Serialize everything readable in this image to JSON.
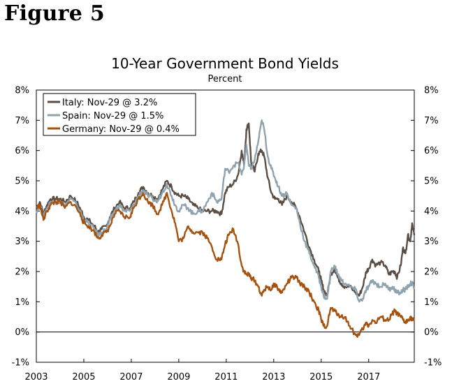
{
  "figure_label": "Figure 5",
  "chart_data": {
    "type": "line",
    "title": "10-Year Government Bond Yields",
    "subtitle": "Percent",
    "xlabel": "",
    "ylabel": "",
    "x_range": [
      2003.0,
      2018.92
    ],
    "ylim": [
      -1,
      8
    ],
    "y_ticks": [
      -1,
      0,
      1,
      2,
      3,
      4,
      5,
      6,
      7,
      8
    ],
    "y_tick_labels": [
      "-1%",
      "0%",
      "1%",
      "2%",
      "3%",
      "4%",
      "5%",
      "6%",
      "7%",
      "8%"
    ],
    "x_ticks": [
      2003,
      2005,
      2007,
      2009,
      2011,
      2013,
      2015,
      2017
    ],
    "x_tick_labels": [
      "2003",
      "2005",
      "2007",
      "2009",
      "2011",
      "2013",
      "2015",
      "2017"
    ],
    "legend_position": "top-left",
    "series": [
      {
        "name": "Italy: Nov-29 @ 3.2%",
        "color": "#5a4e44",
        "points": [
          [
            2003.0,
            4.1
          ],
          [
            2003.15,
            4.3
          ],
          [
            2003.3,
            3.9
          ],
          [
            2003.45,
            4.2
          ],
          [
            2003.6,
            4.4
          ],
          [
            2003.8,
            4.4
          ],
          [
            2004.0,
            4.4
          ],
          [
            2004.2,
            4.3
          ],
          [
            2004.45,
            4.5
          ],
          [
            2004.7,
            4.3
          ],
          [
            2004.9,
            4.0
          ],
          [
            2005.0,
            3.8
          ],
          [
            2005.2,
            3.7
          ],
          [
            2005.45,
            3.5
          ],
          [
            2005.6,
            3.3
          ],
          [
            2005.75,
            3.4
          ],
          [
            2005.95,
            3.5
          ],
          [
            2006.1,
            3.8
          ],
          [
            2006.3,
            4.1
          ],
          [
            2006.5,
            4.3
          ],
          [
            2006.7,
            4.1
          ],
          [
            2006.95,
            4.1
          ],
          [
            2007.1,
            4.3
          ],
          [
            2007.3,
            4.6
          ],
          [
            2007.5,
            4.8
          ],
          [
            2007.7,
            4.6
          ],
          [
            2007.9,
            4.5
          ],
          [
            2008.1,
            4.4
          ],
          [
            2008.3,
            4.7
          ],
          [
            2008.5,
            5.0
          ],
          [
            2008.7,
            4.8
          ],
          [
            2008.85,
            4.6
          ],
          [
            2009.0,
            4.5
          ],
          [
            2009.2,
            4.5
          ],
          [
            2009.4,
            4.4
          ],
          [
            2009.6,
            4.2
          ],
          [
            2009.8,
            4.1
          ],
          [
            2010.0,
            4.0
          ],
          [
            2010.2,
            4.0
          ],
          [
            2010.4,
            4.0
          ],
          [
            2010.6,
            4.0
          ],
          [
            2010.8,
            3.9
          ],
          [
            2010.95,
            4.6
          ],
          [
            2011.1,
            4.8
          ],
          [
            2011.3,
            4.9
          ],
          [
            2011.5,
            5.2
          ],
          [
            2011.65,
            6.0
          ],
          [
            2011.75,
            5.5
          ],
          [
            2011.85,
            6.7
          ],
          [
            2011.95,
            6.9
          ],
          [
            2012.05,
            5.6
          ],
          [
            2012.2,
            5.3
          ],
          [
            2012.35,
            5.9
          ],
          [
            2012.5,
            6.0
          ],
          [
            2012.6,
            5.8
          ],
          [
            2012.75,
            5.1
          ],
          [
            2012.9,
            4.6
          ],
          [
            2013.05,
            4.4
          ],
          [
            2013.2,
            4.4
          ],
          [
            2013.35,
            4.2
          ],
          [
            2013.55,
            4.5
          ],
          [
            2013.75,
            4.3
          ],
          [
            2013.95,
            4.1
          ],
          [
            2014.1,
            3.8
          ],
          [
            2014.3,
            3.3
          ],
          [
            2014.5,
            2.8
          ],
          [
            2014.7,
            2.4
          ],
          [
            2014.9,
            2.0
          ],
          [
            2015.0,
            1.7
          ],
          [
            2015.1,
            1.4
          ],
          [
            2015.25,
            1.2
          ],
          [
            2015.4,
            1.9
          ],
          [
            2015.55,
            2.1
          ],
          [
            2015.7,
            1.8
          ],
          [
            2015.85,
            1.6
          ],
          [
            2016.0,
            1.5
          ],
          [
            2016.2,
            1.5
          ],
          [
            2016.45,
            1.3
          ],
          [
            2016.6,
            1.2
          ],
          [
            2016.75,
            1.5
          ],
          [
            2016.9,
            2.0
          ],
          [
            2017.0,
            2.1
          ],
          [
            2017.15,
            2.4
          ],
          [
            2017.3,
            2.2
          ],
          [
            2017.5,
            2.3
          ],
          [
            2017.7,
            2.2
          ],
          [
            2017.85,
            1.9
          ],
          [
            2018.0,
            2.0
          ],
          [
            2018.1,
            2.0
          ],
          [
            2018.2,
            1.8
          ],
          [
            2018.35,
            2.2
          ],
          [
            2018.45,
            2.8
          ],
          [
            2018.55,
            2.6
          ],
          [
            2018.65,
            3.2
          ],
          [
            2018.75,
            3.0
          ],
          [
            2018.83,
            3.6
          ],
          [
            2018.92,
            3.2
          ]
        ]
      },
      {
        "name": "Spain: Nov-29 @ 1.5%",
        "color": "#8fa3af",
        "points": [
          [
            2003.0,
            4.0
          ],
          [
            2003.15,
            4.2
          ],
          [
            2003.3,
            3.8
          ],
          [
            2003.45,
            4.1
          ],
          [
            2003.6,
            4.3
          ],
          [
            2003.8,
            4.3
          ],
          [
            2004.0,
            4.3
          ],
          [
            2004.2,
            4.2
          ],
          [
            2004.45,
            4.4
          ],
          [
            2004.7,
            4.2
          ],
          [
            2004.9,
            3.9
          ],
          [
            2005.0,
            3.7
          ],
          [
            2005.2,
            3.6
          ],
          [
            2005.45,
            3.4
          ],
          [
            2005.6,
            3.2
          ],
          [
            2005.75,
            3.3
          ],
          [
            2005.95,
            3.4
          ],
          [
            2006.1,
            3.7
          ],
          [
            2006.3,
            4.0
          ],
          [
            2006.5,
            4.2
          ],
          [
            2006.7,
            4.0
          ],
          [
            2006.95,
            4.0
          ],
          [
            2007.1,
            4.2
          ],
          [
            2007.3,
            4.5
          ],
          [
            2007.5,
            4.7
          ],
          [
            2007.7,
            4.5
          ],
          [
            2007.9,
            4.4
          ],
          [
            2008.1,
            4.3
          ],
          [
            2008.3,
            4.6
          ],
          [
            2008.5,
            4.9
          ],
          [
            2008.7,
            4.5
          ],
          [
            2008.85,
            4.2
          ],
          [
            2009.0,
            4.0
          ],
          [
            2009.2,
            4.2
          ],
          [
            2009.4,
            4.1
          ],
          [
            2009.6,
            3.9
          ],
          [
            2009.8,
            4.0
          ],
          [
            2010.0,
            4.0
          ],
          [
            2010.2,
            4.3
          ],
          [
            2010.4,
            4.6
          ],
          [
            2010.6,
            4.3
          ],
          [
            2010.8,
            4.4
          ],
          [
            2010.95,
            5.4
          ],
          [
            2011.1,
            5.3
          ],
          [
            2011.3,
            5.5
          ],
          [
            2011.5,
            5.6
          ],
          [
            2011.65,
            5.2
          ],
          [
            2011.75,
            5.5
          ],
          [
            2011.85,
            6.2
          ],
          [
            2011.95,
            5.5
          ],
          [
            2012.05,
            5.4
          ],
          [
            2012.2,
            5.7
          ],
          [
            2012.35,
            6.3
          ],
          [
            2012.5,
            7.0
          ],
          [
            2012.6,
            6.7
          ],
          [
            2012.75,
            5.8
          ],
          [
            2012.9,
            5.4
          ],
          [
            2013.05,
            5.1
          ],
          [
            2013.2,
            4.8
          ],
          [
            2013.35,
            4.5
          ],
          [
            2013.55,
            4.6
          ],
          [
            2013.75,
            4.2
          ],
          [
            2013.95,
            4.1
          ],
          [
            2014.1,
            3.6
          ],
          [
            2014.3,
            3.0
          ],
          [
            2014.5,
            2.6
          ],
          [
            2014.7,
            2.2
          ],
          [
            2014.9,
            1.8
          ],
          [
            2015.0,
            1.5
          ],
          [
            2015.1,
            1.2
          ],
          [
            2015.25,
            1.1
          ],
          [
            2015.4,
            2.0
          ],
          [
            2015.55,
            2.2
          ],
          [
            2015.7,
            1.9
          ],
          [
            2015.85,
            1.7
          ],
          [
            2016.0,
            1.6
          ],
          [
            2016.2,
            1.5
          ],
          [
            2016.45,
            1.4
          ],
          [
            2016.6,
            1.0
          ],
          [
            2016.75,
            1.1
          ],
          [
            2016.9,
            1.4
          ],
          [
            2017.0,
            1.5
          ],
          [
            2017.15,
            1.7
          ],
          [
            2017.3,
            1.6
          ],
          [
            2017.5,
            1.5
          ],
          [
            2017.7,
            1.6
          ],
          [
            2017.85,
            1.4
          ],
          [
            2018.0,
            1.5
          ],
          [
            2018.1,
            1.4
          ],
          [
            2018.2,
            1.3
          ],
          [
            2018.35,
            1.3
          ],
          [
            2018.45,
            1.4
          ],
          [
            2018.55,
            1.4
          ],
          [
            2018.65,
            1.5
          ],
          [
            2018.75,
            1.6
          ],
          [
            2018.83,
            1.6
          ],
          [
            2018.92,
            1.5
          ]
        ]
      },
      {
        "name": "Germany: Nov-29 @ 0.4%",
        "color": "#a6520f",
        "points": [
          [
            2003.0,
            4.1
          ],
          [
            2003.15,
            4.2
          ],
          [
            2003.3,
            3.7
          ],
          [
            2003.45,
            4.0
          ],
          [
            2003.6,
            4.2
          ],
          [
            2003.8,
            4.3
          ],
          [
            2004.0,
            4.3
          ],
          [
            2004.2,
            4.1
          ],
          [
            2004.45,
            4.3
          ],
          [
            2004.7,
            4.1
          ],
          [
            2004.9,
            3.8
          ],
          [
            2005.0,
            3.6
          ],
          [
            2005.2,
            3.5
          ],
          [
            2005.45,
            3.3
          ],
          [
            2005.6,
            3.1
          ],
          [
            2005.75,
            3.2
          ],
          [
            2005.95,
            3.3
          ],
          [
            2006.1,
            3.5
          ],
          [
            2006.3,
            3.9
          ],
          [
            2006.5,
            4.0
          ],
          [
            2006.7,
            3.8
          ],
          [
            2006.95,
            3.8
          ],
          [
            2007.1,
            4.1
          ],
          [
            2007.3,
            4.4
          ],
          [
            2007.5,
            4.6
          ],
          [
            2007.7,
            4.3
          ],
          [
            2007.9,
            4.2
          ],
          [
            2008.1,
            3.9
          ],
          [
            2008.3,
            4.2
          ],
          [
            2008.5,
            4.6
          ],
          [
            2008.7,
            4.0
          ],
          [
            2008.85,
            3.6
          ],
          [
            2009.0,
            3.0
          ],
          [
            2009.2,
            3.1
          ],
          [
            2009.4,
            3.5
          ],
          [
            2009.6,
            3.3
          ],
          [
            2009.8,
            3.3
          ],
          [
            2010.0,
            3.3
          ],
          [
            2010.2,
            3.1
          ],
          [
            2010.4,
            2.8
          ],
          [
            2010.6,
            2.4
          ],
          [
            2010.8,
            2.4
          ],
          [
            2010.95,
            2.9
          ],
          [
            2011.1,
            3.2
          ],
          [
            2011.3,
            3.4
          ],
          [
            2011.5,
            2.9
          ],
          [
            2011.65,
            2.2
          ],
          [
            2011.75,
            2.0
          ],
          [
            2011.85,
            1.9
          ],
          [
            2011.95,
            1.9
          ],
          [
            2012.05,
            1.8
          ],
          [
            2012.2,
            1.7
          ],
          [
            2012.35,
            1.5
          ],
          [
            2012.5,
            1.2
          ],
          [
            2012.6,
            1.4
          ],
          [
            2012.75,
            1.5
          ],
          [
            2012.9,
            1.4
          ],
          [
            2013.05,
            1.6
          ],
          [
            2013.2,
            1.4
          ],
          [
            2013.35,
            1.3
          ],
          [
            2013.55,
            1.6
          ],
          [
            2013.75,
            1.8
          ],
          [
            2013.95,
            1.8
          ],
          [
            2014.1,
            1.6
          ],
          [
            2014.3,
            1.5
          ],
          [
            2014.5,
            1.3
          ],
          [
            2014.7,
            1.0
          ],
          [
            2014.9,
            0.7
          ],
          [
            2015.0,
            0.4
          ],
          [
            2015.1,
            0.2
          ],
          [
            2015.25,
            0.2
          ],
          [
            2015.4,
            0.8
          ],
          [
            2015.55,
            0.7
          ],
          [
            2015.7,
            0.6
          ],
          [
            2015.85,
            0.5
          ],
          [
            2016.0,
            0.5
          ],
          [
            2016.2,
            0.2
          ],
          [
            2016.45,
            -0.1
          ],
          [
            2016.6,
            -0.1
          ],
          [
            2016.75,
            0.1
          ],
          [
            2016.9,
            0.3
          ],
          [
            2017.0,
            0.2
          ],
          [
            2017.15,
            0.4
          ],
          [
            2017.3,
            0.3
          ],
          [
            2017.5,
            0.5
          ],
          [
            2017.7,
            0.4
          ],
          [
            2017.85,
            0.4
          ],
          [
            2018.0,
            0.6
          ],
          [
            2018.1,
            0.7
          ],
          [
            2018.2,
            0.6
          ],
          [
            2018.35,
            0.5
          ],
          [
            2018.45,
            0.4
          ],
          [
            2018.55,
            0.3
          ],
          [
            2018.65,
            0.4
          ],
          [
            2018.75,
            0.5
          ],
          [
            2018.83,
            0.4
          ],
          [
            2018.92,
            0.4
          ]
        ]
      }
    ]
  }
}
